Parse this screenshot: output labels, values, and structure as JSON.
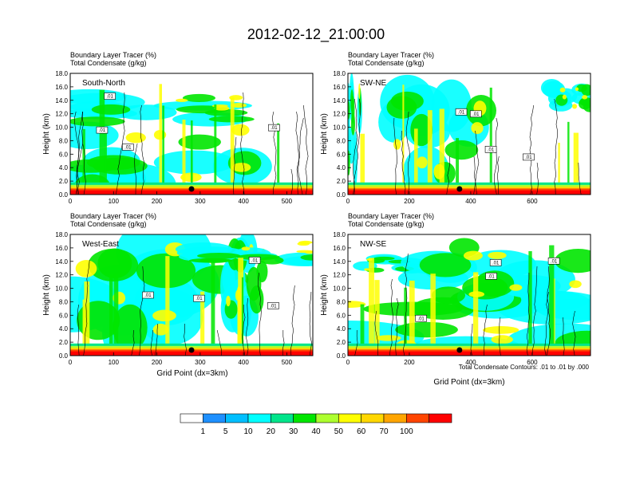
{
  "title": "2012-02-12_21:00:00",
  "chart_data": {
    "type": "heatmap",
    "variable": "Boundary Layer Tracer",
    "variable_units": "(%)",
    "overlay": "Total Condensate",
    "overlay_units": "(g/kg)",
    "ylabel": "Height (km)",
    "xlabel": "Grid Point (dx=3km)",
    "contour_note": "Total Condensate Contours: .01 to .01 by .000",
    "contour_label": ".01",
    "ylim": [
      0,
      18
    ],
    "yticks": [
      "0.0",
      "2.0",
      "4.0",
      "6.0",
      "8.0",
      "10.0",
      "12.0",
      "14.0",
      "16.0",
      "18.0"
    ],
    "panels": [
      {
        "name": "South-North",
        "xlim": [
          0,
          560
        ],
        "xticks": [
          "0",
          "100",
          "200",
          "300",
          "400",
          "500"
        ],
        "xtick_values": [
          0,
          100,
          200,
          300,
          400,
          500
        ]
      },
      {
        "name": "SW-NE",
        "xlim": [
          0,
          790
        ],
        "xticks": [
          "0",
          "200",
          "400",
          "600"
        ],
        "xtick_values": [
          0,
          200,
          400,
          600
        ]
      },
      {
        "name": "West-East",
        "xlim": [
          0,
          560
        ],
        "xticks": [
          "0",
          "100",
          "200",
          "300",
          "400",
          "500"
        ],
        "xtick_values": [
          0,
          100,
          200,
          300,
          400,
          500
        ]
      },
      {
        "name": "NW-SE",
        "xlim": [
          0,
          790
        ],
        "xticks": [
          "0",
          "200",
          "400",
          "600"
        ],
        "xtick_values": [
          0,
          200,
          400,
          600
        ]
      }
    ],
    "colorbar": {
      "labels": [
        "1",
        "5",
        "10",
        "20",
        "30",
        "40",
        "50",
        "60",
        "70",
        "100"
      ],
      "colors": [
        "#ffffff",
        "#1e90ff",
        "#00bfff",
        "#00ffff",
        "#00e58b",
        "#00e600",
        "#adff2f",
        "#ffff00",
        "#ffd700",
        "#ffa500",
        "#ff4500",
        "#ff0000"
      ]
    }
  }
}
